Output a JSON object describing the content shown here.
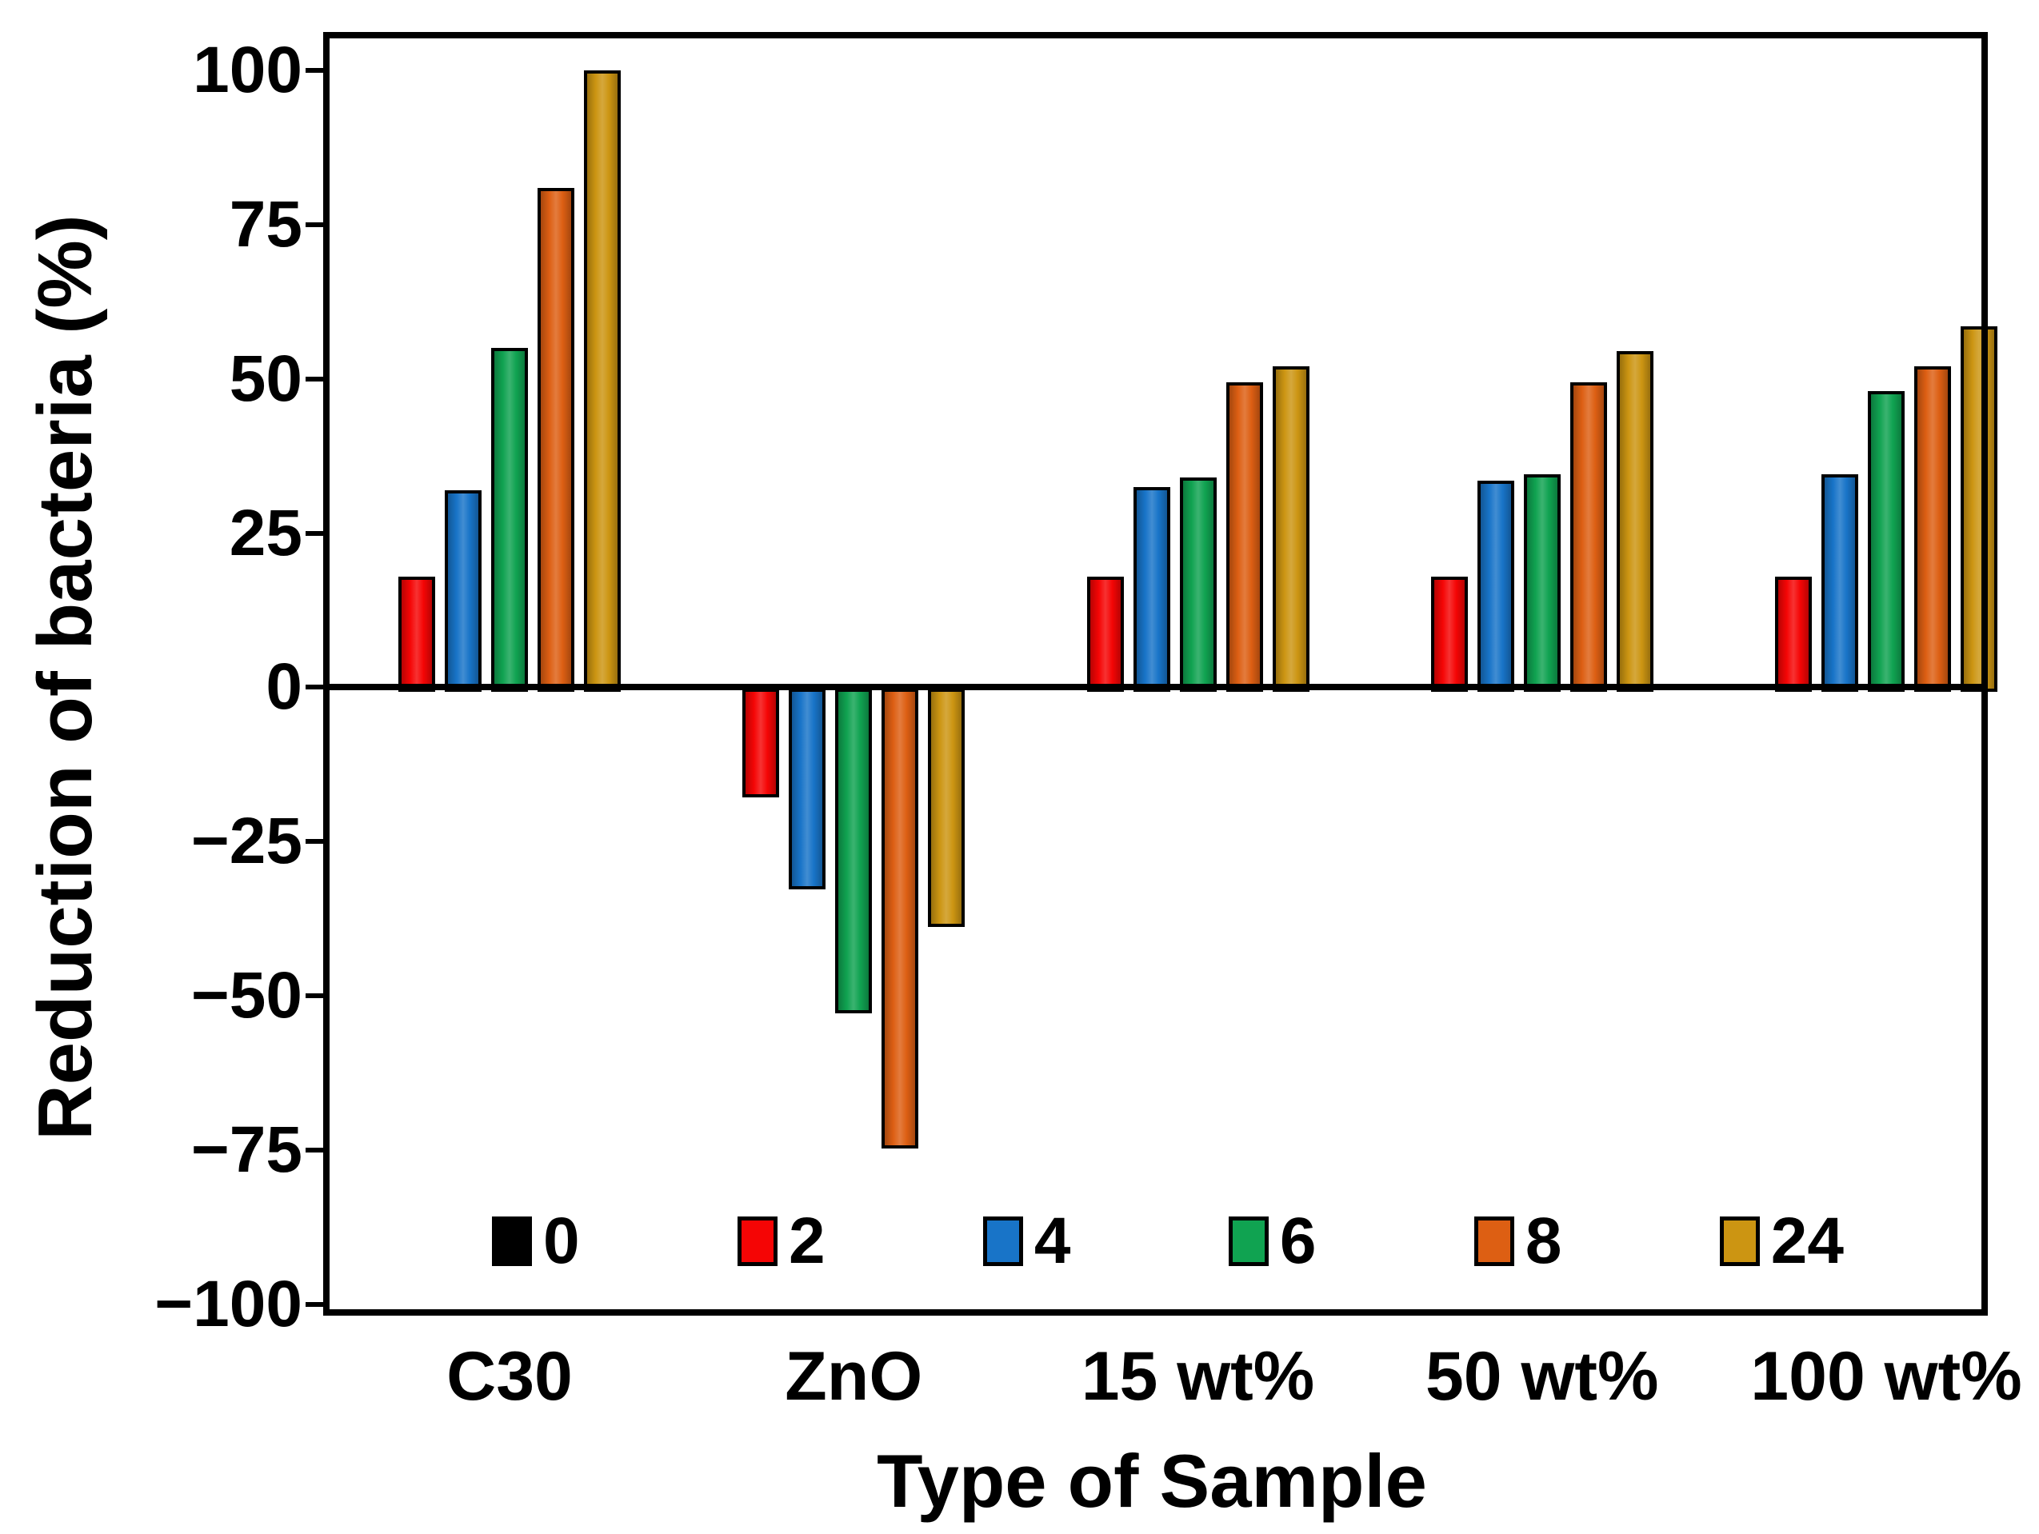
{
  "chart_data": {
    "type": "bar",
    "title": "",
    "xlabel": "Type of Sample",
    "ylabel": "Reduction of bacteria (%)",
    "categories": [
      "C30",
      "ZnO",
      "15 wt%",
      "50 wt%",
      "100 wt%"
    ],
    "series": [
      {
        "name": "0",
        "color": "#000000",
        "values": [
          0,
          0,
          0,
          0,
          0
        ]
      },
      {
        "name": "2",
        "color": "#F50505",
        "values": [
          18,
          -17,
          18,
          18,
          18
        ]
      },
      {
        "name": "4",
        "color": "#1874C8",
        "values": [
          32,
          -32,
          32.5,
          33.5,
          34.5
        ]
      },
      {
        "name": "6",
        "color": "#10A351",
        "values": [
          55,
          -52,
          34,
          34.5,
          48
        ]
      },
      {
        "name": "8",
        "color": "#DD5F13",
        "values": [
          81,
          -74,
          49.5,
          49.5,
          52
        ]
      },
      {
        "name": "24",
        "color": "#CC9512",
        "values": [
          100,
          -38,
          52,
          54.5,
          58.5
        ]
      }
    ],
    "ylim": [
      -100,
      100
    ],
    "yticks": [
      100,
      75,
      50,
      25,
      0,
      -25,
      -50,
      -75,
      -100
    ],
    "y_tick_labels": [
      "100",
      "75",
      "50",
      "25",
      "0",
      "−25",
      "−50",
      "−75",
      "−100"
    ],
    "grid": false,
    "legend_position": "inside-bottom",
    "frame_color": "#000000",
    "background_color": "#FFFFFF"
  }
}
